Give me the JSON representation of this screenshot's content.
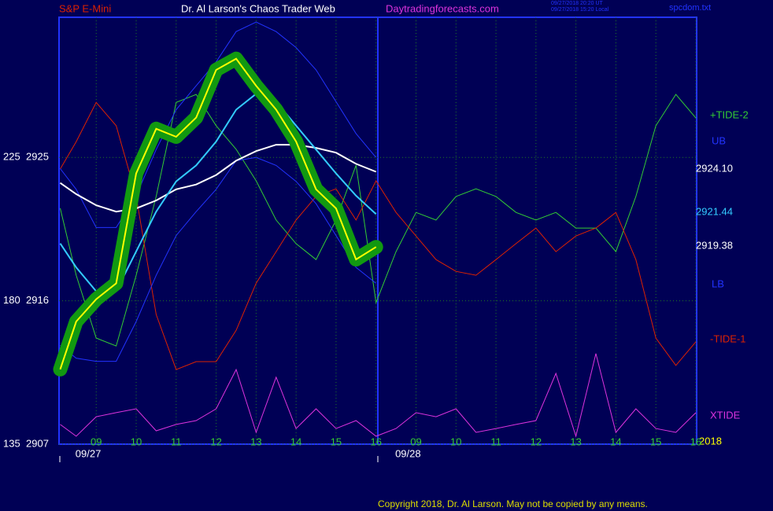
{
  "chart_data": {
    "type": "line",
    "title": "Dr. Al Larson's Chaos Trader Web",
    "instrument": "S&P E-Mini",
    "site": "Daytradingforecasts.com",
    "timestamps": [
      "09/27/2018 20:20 UT",
      "09/27/2018 15:20 Local"
    ],
    "file": "spcdom.txt",
    "copyright": "Copyright 2018, Dr. Al Larson. May not be copied by any means.",
    "corner_text": "2018",
    "x": [
      0.1,
      0.5,
      1,
      1.5,
      2,
      2.5,
      3,
      3.5,
      4,
      4.5,
      5,
      5.5,
      6,
      6.5,
      7,
      7.5,
      8,
      8.5,
      9,
      9.5,
      10,
      10.5,
      11,
      11.5,
      12,
      12.5,
      13,
      13.5,
      14,
      14.5,
      15,
      15.5,
      16
    ],
    "xlim": [
      0.07,
      16.02
    ],
    "xticks": [
      {
        "value": 1,
        "label": "09"
      },
      {
        "value": 2,
        "label": "10"
      },
      {
        "value": 3,
        "label": "11"
      },
      {
        "value": 4,
        "label": "12"
      },
      {
        "value": 5,
        "label": "13"
      },
      {
        "value": 6,
        "label": "14"
      },
      {
        "value": 7,
        "label": "15"
      },
      {
        "value": 8,
        "label": "16"
      },
      {
        "value": 9,
        "label": "09"
      },
      {
        "value": 10,
        "label": "10"
      },
      {
        "value": 11,
        "label": "11"
      },
      {
        "value": 12,
        "label": "12"
      },
      {
        "value": 13,
        "label": "13"
      },
      {
        "value": 14,
        "label": "14"
      },
      {
        "value": 15,
        "label": "15"
      },
      {
        "value": 16,
        "label": "16"
      }
    ],
    "dates": [
      {
        "value": 0.8,
        "label": "09/27"
      },
      {
        "value": 8.8,
        "label": "09/28"
      }
    ],
    "ylim": [
      2907,
      2933.8
    ],
    "yticks": [
      2907,
      2916,
      2925
    ],
    "y2lim": [
      135,
      268.9
    ],
    "y2ticks": [
      135,
      180,
      225
    ],
    "grid": true,
    "background": "#000055",
    "series": [
      {
        "color": "#ffff00",
        "end_label": "2919.38",
        "values": [
          2911.7,
          2914.7,
          2916.1,
          2917.1,
          2924.0,
          2926.8,
          2926.3,
          2927.5,
          2930.5,
          2931.2,
          2929.5,
          2928.0,
          2926.0,
          2923.0,
          2921.8,
          2918.6,
          2919.38,
          null,
          null,
          null,
          null,
          null,
          null,
          null,
          null,
          null,
          null,
          null,
          null,
          null,
          null,
          null,
          null
        ]
      },
      {
        "color": "#33ccff",
        "end_label": "2921.44",
        "values": [
          2919.6,
          2918.1,
          2916.6,
          2916.6,
          2919.1,
          2921.6,
          2923.5,
          2924.5,
          2926.0,
          2928.0,
          2929.0,
          2928.5,
          2927.0,
          2925.5,
          2924.0,
          2922.6,
          2921.44,
          null,
          null,
          null,
          null,
          null,
          null,
          null,
          null,
          null,
          null,
          null,
          null,
          null,
          null,
          null,
          null
        ]
      },
      {
        "color": "#ffffff",
        "end_label": "2924.10",
        "values": [
          2923.4,
          2922.7,
          2922.0,
          2921.6,
          2921.8,
          2922.3,
          2923.0,
          2923.3,
          2923.9,
          2924.8,
          2925.4,
          2925.8,
          2925.8,
          2925.6,
          2925.3,
          2924.6,
          2924.1,
          null,
          null,
          null,
          null,
          null,
          null,
          null,
          null,
          null,
          null,
          null,
          null,
          null,
          null,
          null,
          null
        ]
      },
      {
        "name": "UB",
        "color": "#2233ff",
        "values": [
          2924.3,
          2923.0,
          2920.6,
          2920.6,
          2922.6,
          2925.5,
          2928.0,
          2929.5,
          2931.0,
          2932.9,
          2933.5,
          2932.9,
          2931.9,
          2930.5,
          2928.5,
          2926.5,
          2925.0,
          null,
          null,
          null,
          null,
          null,
          null,
          null,
          null,
          null,
          null,
          null,
          null,
          null,
          null,
          null,
          null
        ]
      },
      {
        "name": "LB",
        "color": "#2233ff",
        "values": [
          2913.2,
          2912.4,
          2912.2,
          2912.2,
          2914.7,
          2917.6,
          2920.1,
          2921.6,
          2923.0,
          2924.8,
          2925.0,
          2924.5,
          2923.5,
          2922.1,
          2920.1,
          2918.1,
          2917.1,
          null,
          null,
          null,
          null,
          null,
          null,
          null,
          null,
          null,
          null,
          null,
          null,
          null,
          null,
          null,
          null
        ]
      },
      {
        "name": "+TIDE-2",
        "color": "#33cc33",
        "axis": "y2",
        "values": [
          209.0,
          188.0,
          168.3,
          165.8,
          188.0,
          212.7,
          242.2,
          244.7,
          234.9,
          227.5,
          217.6,
          205.3,
          197.9,
          192.9,
          205.3,
          222.5,
          179.4,
          195.4,
          207.7,
          205.3,
          212.7,
          215.1,
          212.7,
          207.7,
          205.3,
          207.7,
          202.8,
          202.8,
          195.4,
          212.7,
          234.9,
          244.7,
          237.3
        ]
      },
      {
        "name": "-TIDE-1",
        "color": "#dd2200",
        "axis": "y2",
        "values": [
          221.3,
          229.9,
          242.2,
          234.9,
          212.7,
          175.7,
          158.4,
          160.9,
          160.9,
          170.7,
          185.5,
          195.4,
          205.3,
          212.7,
          215.1,
          205.3,
          217.6,
          207.7,
          200.3,
          192.9,
          189.2,
          188.0,
          192.9,
          197.9,
          202.8,
          195.4,
          200.3,
          202.8,
          207.7,
          192.9,
          168.3,
          159.7,
          167.1
        ]
      },
      {
        "name": "XTIDE",
        "color": "#dd33dd",
        "axis": "y2",
        "values": [
          141.2,
          137.5,
          143.6,
          144.9,
          146.1,
          139.2,
          141.2,
          142.4,
          146.1,
          158.4,
          138.7,
          156.0,
          139.9,
          146.1,
          139.9,
          142.4,
          137.5,
          139.9,
          144.9,
          143.6,
          146.1,
          138.7,
          139.9,
          141.2,
          142.4,
          157.2,
          137.5,
          163.4,
          138.7,
          146.1,
          139.9,
          138.7,
          144.9
        ]
      }
    ]
  }
}
